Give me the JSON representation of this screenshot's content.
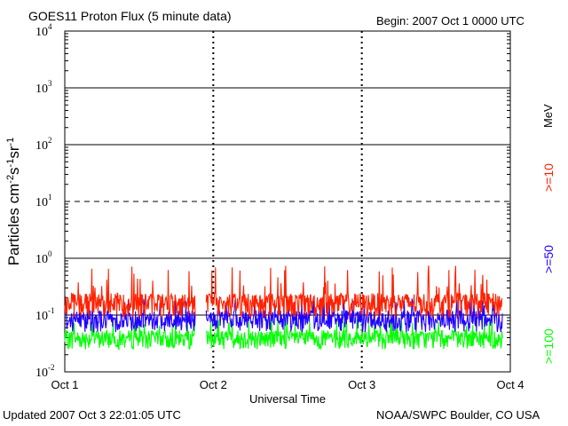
{
  "header": {
    "title": "GOES11 Proton Flux (5 minute data)",
    "begin": "Begin: 2007 Oct 1 0000 UTC"
  },
  "footer": {
    "updated": "Updated 2007 Oct  3 22:01:05 UTC",
    "credit": "NOAA/SWPC Boulder, CO USA"
  },
  "legend": {
    "unit": "MeV",
    "items": [
      {
        "label": ">=10",
        "color": "#ff2000"
      },
      {
        "label": ">=50",
        "color": "#2000ff"
      },
      {
        "label": ">=100",
        "color": "#00ff00"
      }
    ]
  },
  "chart_data": {
    "type": "line",
    "title": "GOES11 Proton Flux (5 minute data)",
    "xlabel": "Universal Time",
    "ylabel": "Particles cm-2s-1sr-1",
    "y_scale": "log",
    "ylim": [
      0.01,
      10000
    ],
    "y_ticks": [
      "10-2",
      "10-1",
      "100",
      "101",
      "102",
      "103",
      "104"
    ],
    "x_ticks": [
      "Oct 1",
      "Oct 2",
      "Oct 3",
      "Oct 4"
    ],
    "xlim_days": [
      0,
      3
    ],
    "grid": "horizontal lines at each decade (dashed at 10), dashed vertical day markers",
    "data_gap_days": [
      0.88,
      0.95
    ],
    "series": [
      {
        "name": ">=10 MeV",
        "color": "#ff2000",
        "typical": 0.18,
        "min": 0.09,
        "max": 0.75
      },
      {
        "name": ">=50 MeV",
        "color": "#2000ff",
        "typical": 0.09,
        "min": 0.05,
        "max": 0.2
      },
      {
        "name": ">=100 MeV",
        "color": "#00ff00",
        "typical": 0.04,
        "min": 0.025,
        "max": 0.09
      }
    ]
  }
}
